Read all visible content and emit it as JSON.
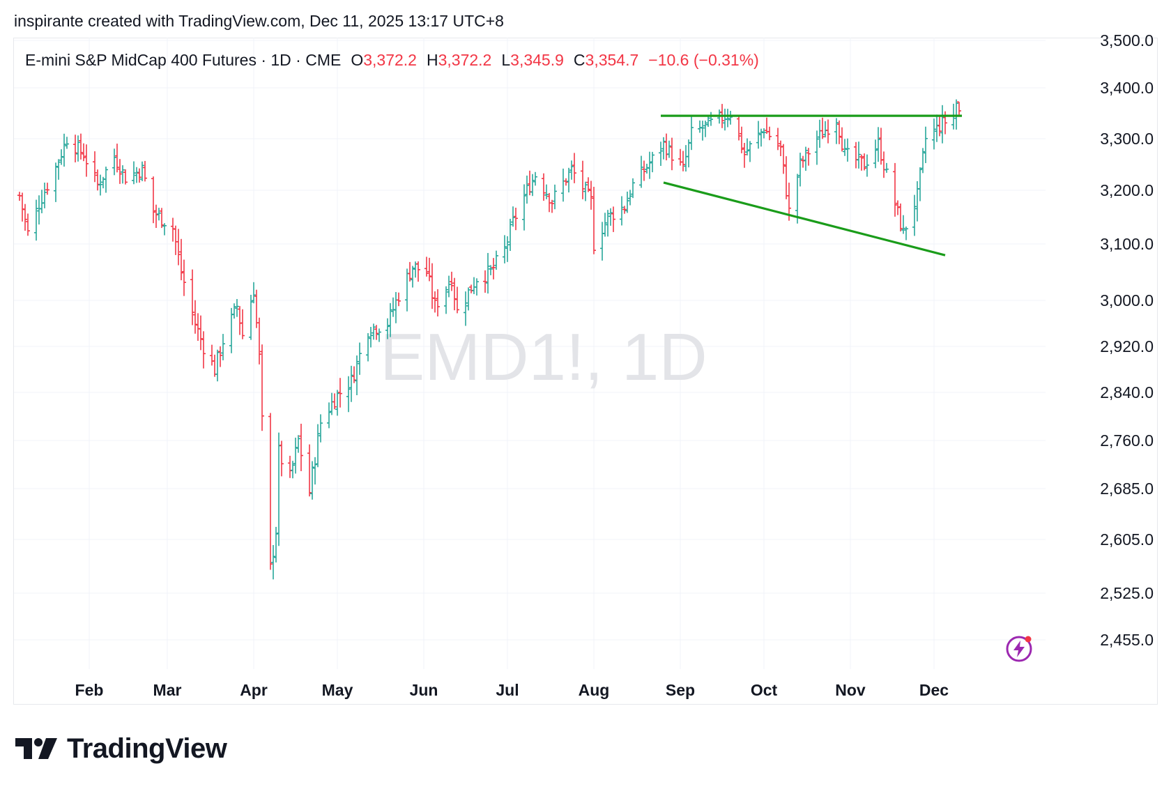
{
  "header": {
    "created_line": "inspirante created with TradingView.com, Dec 11, 2025 13:17 UTC+8"
  },
  "legend": {
    "symbol_line": "E-mini S&P MidCap 400 Futures · 1D · CME",
    "open_label": "O",
    "open_value": "3,372.2",
    "high_label": "H",
    "high_value": "3,372.2",
    "low_label": "L",
    "low_value": "3,345.9",
    "close_label": "C",
    "close_value": "3,354.7",
    "change": "−10.6 (−0.31%)"
  },
  "watermark": "EMD1!, 1D",
  "brand": {
    "name": "TradingView"
  },
  "colors": {
    "up": "#26a69a",
    "down": "#f23645",
    "trendline": "#1a9c1a",
    "grid": "#f0f3fa",
    "bolt": "#9c27b0"
  },
  "chart_data": {
    "type": "ohlc",
    "title": "E-mini S&P MidCap 400 Futures · 1D · CME",
    "x_ticks": [
      "Feb",
      "Mar",
      "Apr",
      "May",
      "Jun",
      "Jul",
      "Aug",
      "Sep",
      "Oct",
      "Nov",
      "Dec"
    ],
    "y_ticks": [
      "3,500.0",
      "3,400.0",
      "3,300.0",
      "3,200.0",
      "3,100.0",
      "3,000.0",
      "2,920.0",
      "2,840.0",
      "2,760.0",
      "2,685.0",
      "2,605.0",
      "2,525.0",
      "2,455.0"
    ],
    "y_range": [
      2420,
      3500
    ],
    "date_range": [
      "2025-01-07",
      "2025-12-10"
    ],
    "anchors": [
      [
        "2025-01-07",
        3190
      ],
      [
        "2025-01-10",
        3120
      ],
      [
        "2025-01-14",
        3175
      ],
      [
        "2025-01-20",
        3245
      ],
      [
        "2025-01-24",
        3300
      ],
      [
        "2025-01-30",
        3270
      ],
      [
        "2025-02-04",
        3210
      ],
      [
        "2025-02-10",
        3265
      ],
      [
        "2025-02-14",
        3225
      ],
      [
        "2025-02-20",
        3240
      ],
      [
        "2025-02-24",
        3160
      ],
      [
        "2025-03-03",
        3130
      ],
      [
        "2025-03-06",
        3050
      ],
      [
        "2025-03-11",
        2960
      ],
      [
        "2025-03-14",
        2920
      ],
      [
        "2025-03-18",
        2880
      ],
      [
        "2025-03-21",
        2930
      ],
      [
        "2025-03-26",
        2990
      ],
      [
        "2025-03-28",
        2940
      ],
      [
        "2025-04-01",
        3020
      ],
      [
        "2025-04-03",
        2900
      ],
      [
        "2025-04-04",
        2790
      ],
      [
        "2025-04-07",
        2560
      ],
      [
        "2025-04-09",
        2620
      ],
      [
        "2025-04-10",
        2740
      ],
      [
        "2025-04-14",
        2700
      ],
      [
        "2025-04-17",
        2760
      ],
      [
        "2025-04-21",
        2680
      ],
      [
        "2025-04-25",
        2790
      ],
      [
        "2025-04-30",
        2830
      ],
      [
        "2025-05-06",
        2860
      ],
      [
        "2025-05-12",
        2950
      ],
      [
        "2025-05-19",
        2960
      ],
      [
        "2025-05-23",
        3010
      ],
      [
        "2025-05-28",
        3060
      ],
      [
        "2025-06-02",
        3050
      ],
      [
        "2025-06-05",
        2990
      ],
      [
        "2025-06-11",
        3040
      ],
      [
        "2025-06-13",
        2980
      ],
      [
        "2025-06-20",
        3040
      ],
      [
        "2025-06-25",
        3050
      ],
      [
        "2025-06-30",
        3090
      ],
      [
        "2025-07-03",
        3140
      ],
      [
        "2025-07-08",
        3200
      ],
      [
        "2025-07-11",
        3230
      ],
      [
        "2025-07-17",
        3180
      ],
      [
        "2025-07-24",
        3240
      ],
      [
        "2025-07-31",
        3180
      ],
      [
        "2025-08-01",
        3100
      ],
      [
        "2025-08-06",
        3150
      ],
      [
        "2025-08-12",
        3170
      ],
      [
        "2025-08-15",
        3210
      ],
      [
        "2025-08-22",
        3260
      ],
      [
        "2025-08-26",
        3290
      ],
      [
        "2025-09-02",
        3240
      ],
      [
        "2025-09-05",
        3310
      ],
      [
        "2025-09-12",
        3330
      ],
      [
        "2025-09-19",
        3350
      ],
      [
        "2025-09-24",
        3270
      ],
      [
        "2025-10-01",
        3320
      ],
      [
        "2025-10-07",
        3280
      ],
      [
        "2025-10-10",
        3160
      ],
      [
        "2025-10-14",
        3250
      ],
      [
        "2025-10-20",
        3300
      ],
      [
        "2025-10-27",
        3340
      ],
      [
        "2025-10-30",
        3270
      ],
      [
        "2025-11-06",
        3250
      ],
      [
        "2025-11-11",
        3290
      ],
      [
        "2025-11-14",
        3230
      ],
      [
        "2025-11-20",
        3120
      ],
      [
        "2025-11-25",
        3190
      ],
      [
        "2025-11-28",
        3300
      ],
      [
        "2025-12-04",
        3330
      ],
      [
        "2025-12-08",
        3345
      ],
      [
        "2025-12-09",
        3370
      ],
      [
        "2025-12-10",
        3355
      ]
    ],
    "last_bar": {
      "open": 3372.2,
      "high": 3372.2,
      "low": 3345.9,
      "close": 3354.7
    },
    "trendlines": [
      {
        "name": "Resistance",
        "from": [
          "2025-08-25",
          3345
        ],
        "to": [
          "2025-12-11",
          3345
        ]
      },
      {
        "name": "Support",
        "from": [
          "2025-08-26",
          3215
        ],
        "to": [
          "2025-12-05",
          3080
        ]
      }
    ],
    "grid": true,
    "legend_position": "top-left"
  }
}
